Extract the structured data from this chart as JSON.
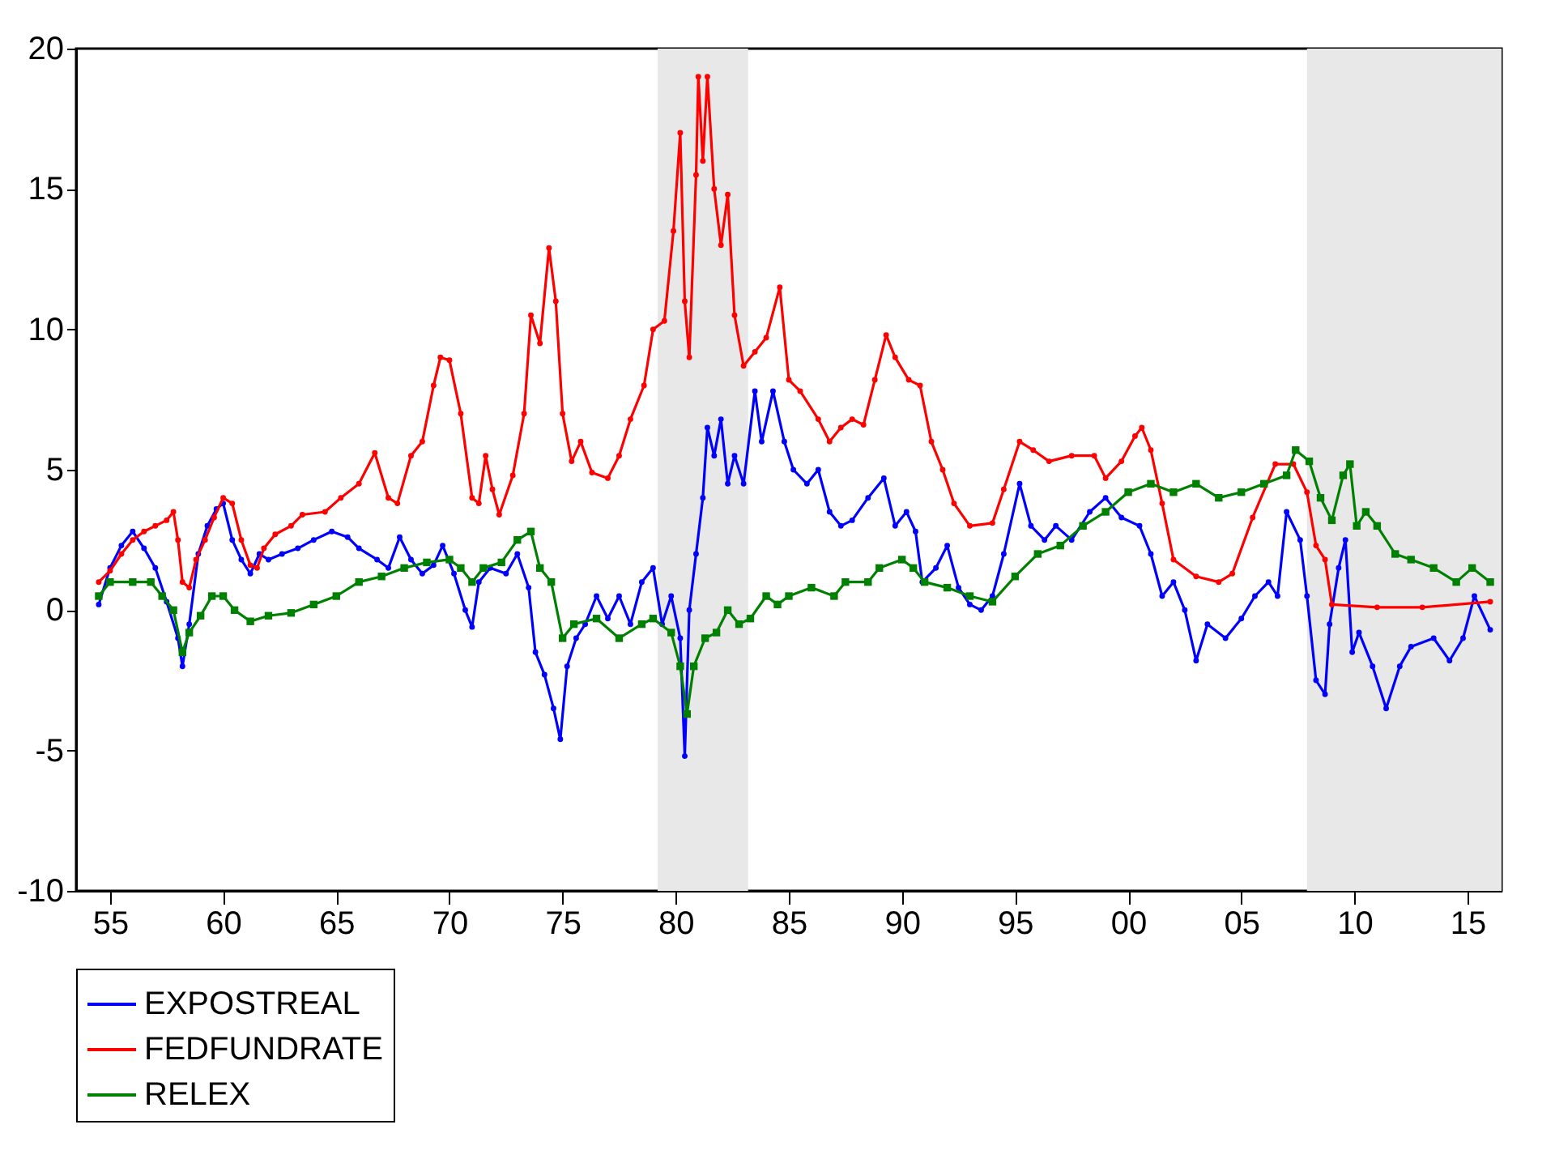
{
  "chart_data": {
    "type": "line",
    "legend": "bottom",
    "grid": false,
    "line_style": "solid",
    "xlim": [
      1953.5,
      2016.5
    ],
    "ylim": [
      -10,
      20
    ],
    "yticks": [
      -10,
      -5,
      0,
      5,
      10,
      15,
      20
    ],
    "xticks": [
      {
        "value": 1955,
        "label": "55"
      },
      {
        "value": 1960,
        "label": "60"
      },
      {
        "value": 1965,
        "label": "65"
      },
      {
        "value": 1970,
        "label": "70"
      },
      {
        "value": 1975,
        "label": "75"
      },
      {
        "value": 1980,
        "label": "80"
      },
      {
        "value": 1985,
        "label": "85"
      },
      {
        "value": 1990,
        "label": "90"
      },
      {
        "value": 1995,
        "label": "95"
      },
      {
        "value": 2000,
        "label": "00"
      },
      {
        "value": 2005,
        "label": "05"
      },
      {
        "value": 2010,
        "label": "10"
      },
      {
        "value": 2015,
        "label": "15"
      }
    ],
    "bands": [
      {
        "axis": "x",
        "from": 1979.2,
        "to": 1983.2,
        "color": "#e8e8e8"
      },
      {
        "axis": "x",
        "from": 2007.9,
        "to": 2016.5,
        "color": "#e8e8e8"
      }
    ],
    "series": [
      {
        "name": "EXPOSTREAL",
        "color": "#0000ff",
        "marker": "circle",
        "x": [
          1954.5,
          1955,
          1955.5,
          1956,
          1956.5,
          1957,
          1957.5,
          1958,
          1958.2,
          1958.5,
          1958.9,
          1959.3,
          1959.7,
          1960,
          1960.4,
          1960.8,
          1961.2,
          1961.6,
          1962,
          1962.6,
          1963.3,
          1964,
          1964.8,
          1965.5,
          1966,
          1966.8,
          1967.3,
          1967.8,
          1968.3,
          1968.8,
          1969.3,
          1969.7,
          1970.2,
          1970.7,
          1971,
          1971.3,
          1971.8,
          1972.5,
          1973,
          1973.5,
          1973.8,
          1974.2,
          1974.6,
          1974.9,
          1975.2,
          1975.6,
          1976,
          1976.5,
          1977,
          1977.5,
          1978,
          1978.5,
          1979,
          1979.4,
          1979.8,
          1980.2,
          1980.4,
          1980.6,
          1980.9,
          1981.2,
          1981.4,
          1981.7,
          1982,
          1982.3,
          1982.6,
          1983,
          1983.5,
          1983.8,
          1984.3,
          1984.8,
          1985.2,
          1985.8,
          1986.3,
          1986.8,
          1987.3,
          1987.8,
          1988.5,
          1989.2,
          1989.7,
          1990.2,
          1990.6,
          1990.9,
          1991.5,
          1992,
          1992.5,
          1993,
          1993.5,
          1994,
          1994.5,
          1995.2,
          1995.7,
          1996.3,
          1996.8,
          1997.5,
          1998.3,
          1999,
          1999.7,
          2000.5,
          2001,
          2001.5,
          2002,
          2002.5,
          2003,
          2003.5,
          2004.3,
          2005,
          2005.6,
          2006.2,
          2006.6,
          2007,
          2007.6,
          2007.9,
          2008.3,
          2008.7,
          2008.9,
          2009.3,
          2009.6,
          2009.9,
          2010.2,
          2010.8,
          2011.4,
          2012,
          2012.5,
          2013.5,
          2014.2,
          2014.8,
          2015.3,
          2016
        ],
        "values": [
          0.2,
          1.5,
          2.3,
          2.8,
          2.2,
          1.5,
          0.3,
          -1.0,
          -2.0,
          -0.5,
          2.0,
          3.0,
          3.6,
          3.8,
          2.5,
          1.8,
          1.3,
          2.0,
          1.8,
          2.0,
          2.2,
          2.5,
          2.8,
          2.6,
          2.2,
          1.8,
          1.5,
          2.6,
          1.8,
          1.3,
          1.6,
          2.3,
          1.3,
          0.0,
          -0.6,
          1.0,
          1.5,
          1.3,
          2.0,
          0.8,
          -1.5,
          -2.3,
          -3.5,
          -4.6,
          -2.0,
          -1.0,
          -0.5,
          0.5,
          -0.3,
          0.5,
          -0.5,
          1.0,
          1.5,
          -0.5,
          0.5,
          -1.0,
          -5.2,
          0.0,
          2.0,
          4.0,
          6.5,
          5.5,
          6.8,
          4.5,
          5.5,
          4.5,
          7.8,
          6.0,
          7.8,
          6.0,
          5.0,
          4.5,
          5.0,
          3.5,
          3.0,
          3.2,
          4.0,
          4.7,
          3.0,
          3.5,
          2.8,
          1.0,
          1.5,
          2.3,
          0.8,
          0.2,
          0.0,
          0.5,
          2.0,
          4.5,
          3.0,
          2.5,
          3.0,
          2.5,
          3.5,
          4.0,
          3.3,
          3.0,
          2.0,
          0.5,
          1.0,
          0.0,
          -1.8,
          -0.5,
          -1.0,
          -0.3,
          0.5,
          1.0,
          0.5,
          3.5,
          2.5,
          0.5,
          -2.5,
          -3.0,
          -0.5,
          1.5,
          2.5,
          -1.5,
          -0.8,
          -2.0,
          -3.5,
          -2.0,
          -1.3,
          -1.0,
          -1.8,
          -1.0,
          0.5,
          -0.7
        ]
      },
      {
        "name": "FEDFUNDRATE",
        "color": "#ff0000",
        "marker": "circle",
        "x": [
          1954.5,
          1955,
          1955.5,
          1956,
          1956.5,
          1957,
          1957.5,
          1957.8,
          1958,
          1958.2,
          1958.5,
          1958.8,
          1959.2,
          1959.6,
          1960,
          1960.4,
          1960.8,
          1961.2,
          1961.5,
          1961.8,
          1962.3,
          1963,
          1963.5,
          1964.5,
          1965.2,
          1966,
          1966.7,
          1967.3,
          1967.7,
          1968.3,
          1968.8,
          1969.3,
          1969.6,
          1970,
          1970.5,
          1971,
          1971.3,
          1971.6,
          1971.9,
          1972.2,
          1972.8,
          1973.3,
          1973.6,
          1974,
          1974.4,
          1974.7,
          1975,
          1975.4,
          1975.8,
          1976.3,
          1977,
          1977.5,
          1978,
          1978.6,
          1979,
          1979.5,
          1979.9,
          1980.2,
          1980.4,
          1980.6,
          1980.9,
          1981,
          1981.2,
          1981.4,
          1981.7,
          1982,
          1982.3,
          1982.6,
          1983,
          1983.5,
          1984,
          1984.6,
          1985,
          1985.5,
          1986.3,
          1986.8,
          1987.3,
          1987.8,
          1988.3,
          1988.8,
          1989.3,
          1989.7,
          1990.3,
          1990.8,
          1991.3,
          1991.8,
          1992.3,
          1993,
          1994,
          1994.5,
          1995.2,
          1995.8,
          1996.5,
          1997.5,
          1998.5,
          1999,
          1999.7,
          2000.3,
          2000.6,
          2001,
          2001.5,
          2002,
          2003,
          2004,
          2004.6,
          2005.5,
          2006.5,
          2007.3,
          2007.9,
          2008.3,
          2008.7,
          2009,
          2011,
          2013,
          2016
        ],
        "values": [
          1.0,
          1.4,
          2.0,
          2.5,
          2.8,
          3.0,
          3.2,
          3.5,
          2.5,
          1.0,
          0.8,
          1.8,
          2.5,
          3.3,
          4.0,
          3.8,
          2.5,
          1.6,
          1.5,
          2.2,
          2.7,
          3.0,
          3.4,
          3.5,
          4.0,
          4.5,
          5.6,
          4.0,
          3.8,
          5.5,
          6.0,
          8.0,
          9.0,
          8.9,
          7.0,
          4.0,
          3.8,
          5.5,
          4.3,
          3.4,
          4.8,
          7.0,
          10.5,
          9.5,
          12.9,
          11.0,
          7.0,
          5.3,
          6.0,
          4.9,
          4.7,
          5.5,
          6.8,
          8.0,
          10.0,
          10.3,
          13.5,
          17.0,
          11.0,
          9.0,
          15.5,
          19.0,
          16.0,
          19.0,
          15.0,
          13.0,
          14.8,
          10.5,
          8.7,
          9.2,
          9.7,
          11.5,
          8.2,
          7.8,
          6.8,
          6.0,
          6.5,
          6.8,
          6.6,
          8.2,
          9.8,
          9.0,
          8.2,
          8.0,
          6.0,
          5.0,
          3.8,
          3.0,
          3.1,
          4.3,
          6.0,
          5.7,
          5.3,
          5.5,
          5.5,
          4.7,
          5.3,
          6.2,
          6.5,
          5.7,
          3.8,
          1.8,
          1.2,
          1.0,
          1.3,
          3.3,
          5.2,
          5.2,
          4.2,
          2.3,
          1.8,
          0.2,
          0.1,
          0.1,
          0.3
        ]
      },
      {
        "name": "RELEX",
        "color": "#008000",
        "marker": "square",
        "x": [
          1954.5,
          1955,
          1956,
          1956.8,
          1957.3,
          1957.8,
          1958.2,
          1958.5,
          1959,
          1959.5,
          1960,
          1960.5,
          1961.2,
          1962,
          1963,
          1964,
          1965,
          1966,
          1967,
          1968,
          1969,
          1970,
          1970.5,
          1971,
          1971.5,
          1972.3,
          1973,
          1973.6,
          1974,
          1974.5,
          1975,
          1975.5,
          1976.5,
          1977.5,
          1978.5,
          1979,
          1979.8,
          1980.2,
          1980.5,
          1980.8,
          1981.3,
          1981.8,
          1982.3,
          1982.8,
          1983.3,
          1984,
          1984.5,
          1985,
          1986,
          1987,
          1987.5,
          1988.5,
          1989,
          1990,
          1990.5,
          1991,
          1992,
          1993,
          1994,
          1995,
          1996,
          1997,
          1998,
          1999,
          2000,
          2001,
          2002,
          2003,
          2004,
          2005,
          2006,
          2007,
          2007.4,
          2008,
          2008.5,
          2009,
          2009.5,
          2009.8,
          2010.1,
          2010.5,
          2011,
          2011.8,
          2012.5,
          2013.5,
          2014.5,
          2015.2,
          2016
        ],
        "values": [
          0.5,
          1.0,
          1.0,
          1.0,
          0.5,
          0.0,
          -1.5,
          -0.8,
          -0.2,
          0.5,
          0.5,
          0.0,
          -0.4,
          -0.2,
          -0.1,
          0.2,
          0.5,
          1.0,
          1.2,
          1.5,
          1.7,
          1.8,
          1.5,
          1.0,
          1.5,
          1.7,
          2.5,
          2.8,
          1.5,
          1.0,
          -1.0,
          -0.5,
          -0.3,
          -1.0,
          -0.5,
          -0.3,
          -0.8,
          -2.0,
          -3.7,
          -2.0,
          -1.0,
          -0.8,
          0.0,
          -0.5,
          -0.3,
          0.5,
          0.2,
          0.5,
          0.8,
          0.5,
          1.0,
          1.0,
          1.5,
          1.8,
          1.5,
          1.0,
          0.8,
          0.5,
          0.3,
          1.2,
          2.0,
          2.3,
          3.0,
          3.5,
          4.2,
          4.5,
          4.2,
          4.5,
          4.0,
          4.2,
          4.5,
          4.8,
          5.7,
          5.3,
          4.0,
          3.2,
          4.8,
          5.2,
          3.0,
          3.5,
          3.0,
          2.0,
          1.8,
          1.5,
          1.0,
          1.5,
          1.0
        ]
      }
    ]
  }
}
